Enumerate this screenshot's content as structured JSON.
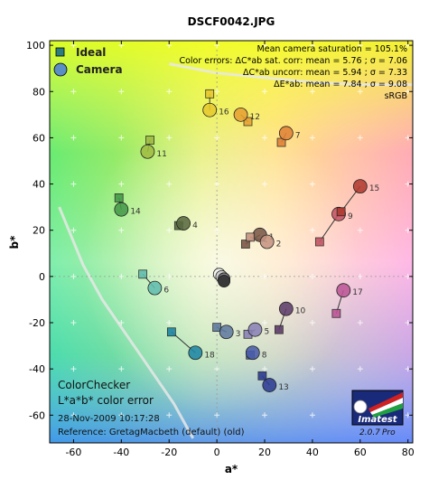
{
  "chart_data": {
    "type": "scatter",
    "title": "DSCF0042.JPG",
    "xlabel": "a*",
    "ylabel": "b*",
    "xlim": [
      -70,
      82
    ],
    "ylim": [
      -72,
      102
    ],
    "xticks": [
      -60,
      -40,
      -20,
      0,
      20,
      40,
      60,
      80
    ],
    "yticks": [
      -60,
      -40,
      -20,
      0,
      20,
      40,
      60,
      80,
      100
    ],
    "grid": true,
    "legend_position": "top-left",
    "series": [
      {
        "name": "Ideal",
        "marker": "square"
      },
      {
        "name": "Camera",
        "marker": "circle"
      }
    ],
    "stats": [
      "Mean camera saturation = 105.1%",
      "Color errors: ΔC*ab sat. corr:  mean = 5.76 ;  σ = 7.06",
      "ΔC*ab uncorr:  mean = 5.94 ;  σ = 7.33",
      "ΔE*ab:  mean = 7.84 ;  σ = 9.08",
      "sRGB"
    ],
    "footer": {
      "line1": "ColorChecker",
      "line2": "L*a*b* color error",
      "line3": "28-Nov-2009 10:17:28",
      "line4": "Reference: GretagMacbeth (default) (old)"
    },
    "logo": {
      "text": "Imatest",
      "version": "2.0.7",
      "edition": "Pro"
    },
    "patches": [
      {
        "id": 1,
        "ideal": [
          12,
          14
        ],
        "camera": [
          18,
          18
        ],
        "color": "#7a5848"
      },
      {
        "id": 2,
        "ideal": [
          14,
          17
        ],
        "camera": [
          21,
          15
        ],
        "color": "#c59482"
      },
      {
        "id": 3,
        "ideal": [
          0,
          -22
        ],
        "camera": [
          4,
          -24
        ],
        "color": "#5e7aa0"
      },
      {
        "id": 4,
        "ideal": [
          -16,
          22
        ],
        "camera": [
          -14,
          23
        ],
        "color": "#5a6a40"
      },
      {
        "id": 5,
        "ideal": [
          13,
          -25
        ],
        "camera": [
          16,
          -23
        ],
        "color": "#8a82b6"
      },
      {
        "id": 6,
        "ideal": [
          -31,
          1
        ],
        "camera": [
          -26,
          -5
        ],
        "color": "#62bcae"
      },
      {
        "id": 7,
        "ideal": [
          27,
          58
        ],
        "camera": [
          29,
          62
        ],
        "color": "#e08238"
      },
      {
        "id": 8,
        "ideal": [
          14,
          -34
        ],
        "camera": [
          15,
          -33
        ],
        "color": "#4a5ca8"
      },
      {
        "id": 9,
        "ideal": [
          43,
          15
        ],
        "camera": [
          51,
          27
        ],
        "color": "#c35464"
      },
      {
        "id": 10,
        "ideal": [
          26,
          -23
        ],
        "camera": [
          29,
          -14
        ],
        "color": "#5e3c6a"
      },
      {
        "id": 11,
        "ideal": [
          -28,
          59
        ],
        "camera": [
          -29,
          54
        ],
        "color": "#9ebc42"
      },
      {
        "id": 12,
        "ideal": [
          13,
          67
        ],
        "camera": [
          10,
          70
        ],
        "color": "#e6a232"
      },
      {
        "id": 13,
        "ideal": [
          19,
          -43
        ],
        "camera": [
          22,
          -47
        ],
        "color": "#2e3c92"
      },
      {
        "id": 14,
        "ideal": [
          -41,
          34
        ],
        "camera": [
          -40,
          29
        ],
        "color": "#469a4a"
      },
      {
        "id": 15,
        "ideal": [
          52,
          28
        ],
        "camera": [
          60,
          39
        ],
        "color": "#b03a30"
      },
      {
        "id": 16,
        "ideal": [
          -3,
          79
        ],
        "camera": [
          -3,
          72
        ],
        "color": "#e6c82e"
      },
      {
        "id": 17,
        "ideal": [
          50,
          -16
        ],
        "camera": [
          53,
          -6
        ],
        "color": "#bc5696"
      },
      {
        "id": 18,
        "ideal": [
          -19,
          -24
        ],
        "camera": [
          -9,
          -33
        ],
        "color": "#1e86a4"
      },
      {
        "id": 19,
        "ideal": [
          0,
          0
        ],
        "camera": [
          1,
          1
        ],
        "color": "#f4f4f4"
      },
      {
        "id": 20,
        "ideal": [
          0,
          0
        ],
        "camera": [
          2,
          0
        ],
        "color": "#c8c8c8"
      },
      {
        "id": 21,
        "ideal": [
          0,
          0
        ],
        "camera": [
          3,
          -1
        ],
        "color": "#a0a0a0"
      },
      {
        "id": 22,
        "ideal": [
          0,
          0
        ],
        "camera": [
          3,
          -1
        ],
        "color": "#7a7a7a"
      },
      {
        "id": 23,
        "ideal": [
          0,
          0
        ],
        "camera": [
          3,
          -2
        ],
        "color": "#555555"
      },
      {
        "id": 24,
        "ideal": [
          0,
          0
        ],
        "camera": [
          3,
          -2
        ],
        "color": "#343434"
      }
    ],
    "gamut_curves": [
      [
        [
          -66,
          30
        ],
        [
          -62,
          20
        ],
        [
          -56,
          5
        ],
        [
          -48,
          -10
        ],
        [
          -38,
          -25
        ],
        [
          -28,
          -40
        ],
        [
          -18,
          -55
        ],
        [
          -10,
          -70
        ]
      ],
      [
        [
          -20,
          92
        ],
        [
          0,
          88
        ],
        [
          20,
          86
        ],
        [
          40,
          84
        ],
        [
          60,
          83
        ],
        [
          82,
          83
        ]
      ]
    ]
  }
}
